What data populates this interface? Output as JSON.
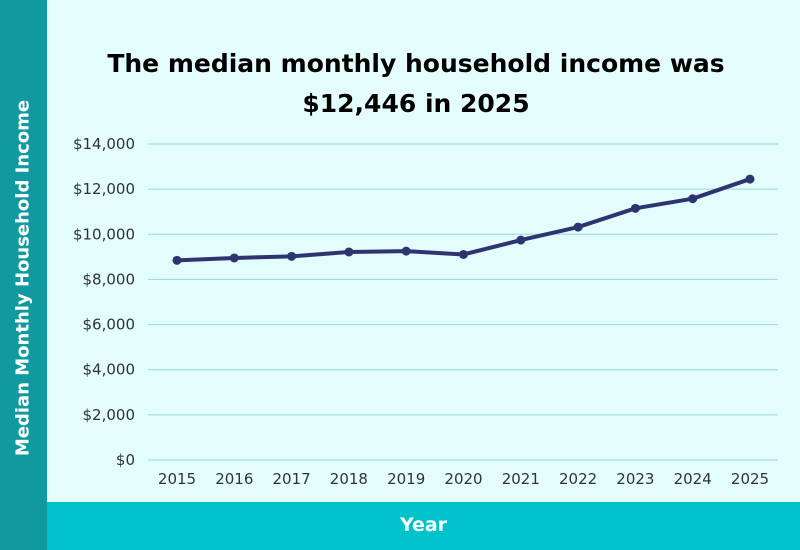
{
  "chart_data": {
    "type": "line",
    "title": "The median monthly household income was $12,446 in 2025",
    "xlabel": "Year",
    "ylabel": "Median Monthly Household Income",
    "x": [
      "2015",
      "2016",
      "2017",
      "2018",
      "2019",
      "2020",
      "2021",
      "2022",
      "2023",
      "2024",
      "2025"
    ],
    "series": [
      {
        "values": [
          8846,
          8951,
          9023,
          9216,
          9254,
          9105,
          9744,
          10320,
          11150,
          11577,
          12446
        ]
      }
    ],
    "ylim": [
      0,
      14000
    ],
    "yticks": [
      "$0",
      "$2,000",
      "$4,000",
      "$6,000",
      "$8,000",
      "$10,000",
      "$12,000",
      "$14,000"
    ],
    "ytick_values": [
      0,
      2000,
      4000,
      6000,
      8000,
      10000,
      12000,
      14000
    ],
    "grid": true,
    "legend": "none",
    "colors": {
      "line": "#2e3470",
      "grid": "#9ed6d6",
      "background": "#e3fcfc",
      "left_bar": "#109aa0",
      "bottom_bar": "#00c2cb"
    }
  }
}
